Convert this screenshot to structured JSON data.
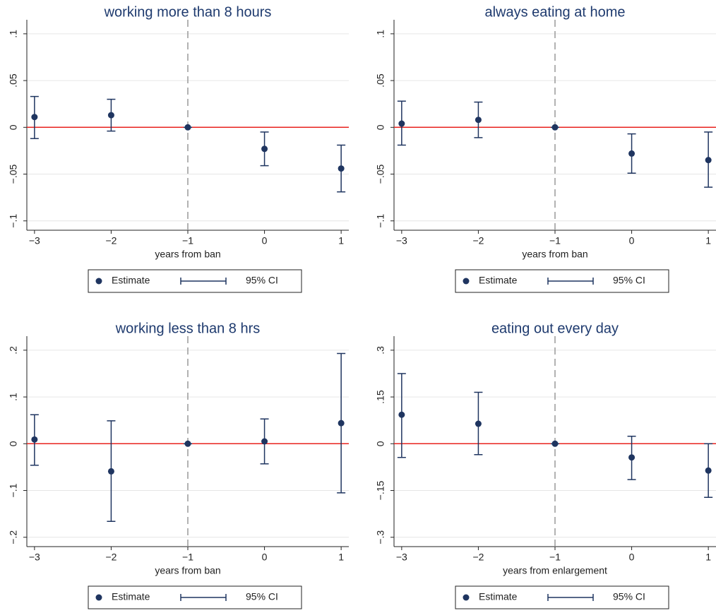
{
  "chart_data": [
    {
      "type": "scatter",
      "title": "working more than 8 hours",
      "x_label": "years from ban",
      "x": [
        -3,
        -2,
        -1,
        0,
        1
      ],
      "xlim": [
        -3.1,
        1.1
      ],
      "xticks": [
        {
          "value": -3,
          "label": "−3"
        },
        {
          "value": -2,
          "label": "−2"
        },
        {
          "value": -1,
          "label": "−1"
        },
        0,
        1
      ],
      "ylim": [
        -0.11,
        0.115
      ],
      "yticks": [
        {
          "value": -0.1,
          "label": "−.1"
        },
        {
          "value": -0.05,
          "label": "−.05"
        },
        0,
        {
          "value": 0.05,
          "label": ".05"
        },
        {
          "value": 0.1,
          "label": ".1"
        }
      ],
      "series": [
        {
          "name": "Estimate",
          "color": "#1f3560",
          "values": [
            0.011,
            0.013,
            0,
            -0.023,
            -0.044
          ]
        }
      ],
      "ci": {
        "name": "95% CI",
        "color": "#1f3560",
        "low": [
          -0.012,
          -0.004,
          0,
          -0.041,
          -0.069
        ],
        "high": [
          0.033,
          0.03,
          0,
          -0.005,
          -0.019
        ]
      },
      "hline": 0,
      "hline_color": "#e8231f",
      "vline": -1,
      "grid": true
    },
    {
      "type": "scatter",
      "title": "always eating at home",
      "x_label": "years from ban",
      "x": [
        -3,
        -2,
        -1,
        0,
        1
      ],
      "xlim": [
        -3.1,
        1.1
      ],
      "xticks": [
        {
          "value": -3,
          "label": "−3"
        },
        {
          "value": -2,
          "label": "−2"
        },
        {
          "value": -1,
          "label": "−1"
        },
        0,
        1
      ],
      "ylim": [
        -0.11,
        0.115
      ],
      "yticks": [
        {
          "value": -0.1,
          "label": "−.1"
        },
        {
          "value": -0.05,
          "label": "−.05"
        },
        0,
        {
          "value": 0.05,
          "label": ".05"
        },
        {
          "value": 0.1,
          "label": ".1"
        }
      ],
      "series": [
        {
          "name": "Estimate",
          "color": "#1f3560",
          "values": [
            0.004,
            0.008,
            0,
            -0.028,
            -0.035
          ]
        }
      ],
      "ci": {
        "name": "95% CI",
        "color": "#1f3560",
        "low": [
          -0.019,
          -0.011,
          0,
          -0.049,
          -0.064
        ],
        "high": [
          0.028,
          0.027,
          0,
          -0.007,
          -0.005
        ]
      },
      "hline": 0,
      "hline_color": "#e8231f",
      "vline": -1,
      "grid": true
    },
    {
      "type": "scatter",
      "title": "working less than 8 hrs",
      "x_label": "years from ban",
      "x": [
        -3,
        -2,
        -1,
        0,
        1
      ],
      "xlim": [
        -3.1,
        1.1
      ],
      "xticks": [
        {
          "value": -3,
          "label": "−3"
        },
        {
          "value": -2,
          "label": "−2"
        },
        {
          "value": -1,
          "label": "−1"
        },
        0,
        1
      ],
      "ylim": [
        -0.22,
        0.23
      ],
      "yticks": [
        {
          "value": -0.2,
          "label": "−.2"
        },
        {
          "value": -0.1,
          "label": "−.1"
        },
        0,
        {
          "value": 0.1,
          "label": ".1"
        },
        {
          "value": 0.2,
          "label": ".2"
        }
      ],
      "series": [
        {
          "name": "Estimate",
          "color": "#1f3560",
          "values": [
            0.009,
            -0.059,
            0,
            0.005,
            0.044
          ]
        }
      ],
      "ci": {
        "name": "95% CI",
        "color": "#1f3560",
        "low": [
          -0.046,
          -0.166,
          0,
          -0.043,
          -0.105
        ],
        "high": [
          0.062,
          0.049,
          0,
          0.053,
          0.193
        ]
      },
      "hline": 0,
      "hline_color": "#e8231f",
      "vline": -1,
      "grid": true
    },
    {
      "type": "scatter",
      "title": "eating out every day",
      "x_label": "years from enlargement",
      "x": [
        -3,
        -2,
        -1,
        0,
        1
      ],
      "xlim": [
        -3.1,
        1.1
      ],
      "xticks": [
        {
          "value": -3,
          "label": "−3"
        },
        {
          "value": -2,
          "label": "−2"
        },
        {
          "value": -1,
          "label": "−1"
        },
        0,
        1
      ],
      "ylim": [
        -0.33,
        0.345
      ],
      "yticks": [
        {
          "value": -0.3,
          "label": "−.3"
        },
        {
          "value": -0.15,
          "label": "−.15"
        },
        0,
        {
          "value": 0.15,
          "label": ".15"
        },
        {
          "value": 0.3,
          "label": ".3"
        }
      ],
      "series": [
        {
          "name": "Estimate",
          "color": "#1f3560",
          "values": [
            0.093,
            0.064,
            0,
            -0.044,
            -0.086
          ]
        }
      ],
      "ci": {
        "name": "95% CI",
        "color": "#1f3560",
        "low": [
          -0.044,
          -0.035,
          0,
          -0.115,
          -0.172
        ],
        "high": [
          0.225,
          0.165,
          0,
          0.024,
          0
        ]
      },
      "hline": 0,
      "hline_color": "#e8231f",
      "vline": -1,
      "grid": true
    }
  ]
}
